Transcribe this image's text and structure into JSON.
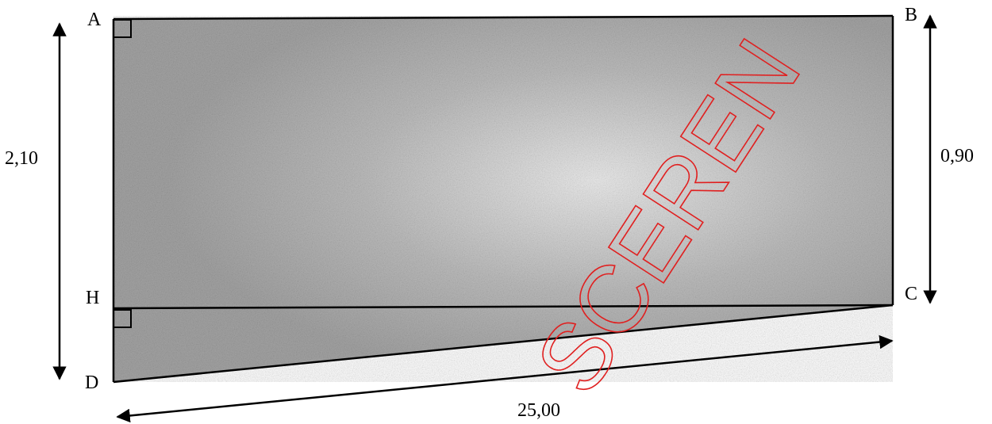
{
  "points": {
    "a": "A",
    "b": "B",
    "c": "C",
    "d": "D",
    "h": "H"
  },
  "dimensions": {
    "left_height": "2,10",
    "right_height": "0,90",
    "length": "25,00"
  },
  "watermark": {
    "text": "SCEREN",
    "color": "#e02020"
  },
  "colors": {
    "fill": "#b8b8b8",
    "stroke": "#000000"
  }
}
